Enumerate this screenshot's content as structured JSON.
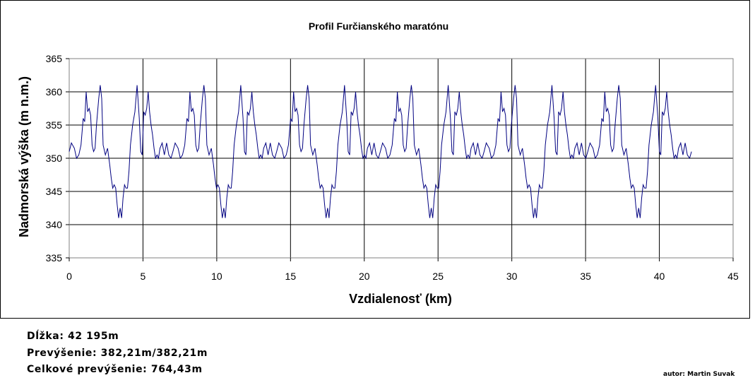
{
  "chart_data": {
    "type": "line",
    "title": "Profil Furčianského maratónu",
    "xlabel": "Vzdialenosť (km)",
    "ylabel": "Nadmorská výška (m n.m.)",
    "xlim": [
      0,
      45
    ],
    "ylim": [
      335,
      365
    ],
    "xticks": [
      0,
      5,
      10,
      15,
      20,
      25,
      30,
      35,
      40,
      45
    ],
    "yticks": [
      335,
      340,
      345,
      350,
      355,
      360,
      365
    ],
    "grid": true,
    "legend": "none",
    "line_color": "#000080",
    "lap_length_km": 7.03,
    "laps": 6,
    "lap_profile": {
      "x": [
        0,
        0.15,
        0.35,
        0.5,
        0.65,
        0.8,
        0.95,
        1.05,
        1.15,
        1.25,
        1.35,
        1.45,
        1.55,
        1.65,
        1.75,
        1.85,
        2.0,
        2.1,
        2.2,
        2.3,
        2.45,
        2.6,
        2.75,
        2.85,
        2.95,
        3.05,
        3.15,
        3.25,
        3.35,
        3.45,
        3.55,
        3.65,
        3.75,
        3.85,
        3.95,
        4.05,
        4.15,
        4.3,
        4.45,
        4.6,
        4.75,
        4.85,
        4.95,
        5.05,
        5.15,
        5.25,
        5.35,
        5.45,
        5.55,
        5.65,
        5.75,
        5.85,
        5.95,
        6.05,
        6.15,
        6.3,
        6.45,
        6.6,
        6.75,
        6.9,
        7.03
      ],
      "y": [
        351,
        352.3,
        351.5,
        350,
        350.5,
        352,
        356,
        355.5,
        360,
        357,
        357.5,
        356.5,
        352,
        351,
        351.5,
        355,
        359,
        361,
        359,
        352,
        350.5,
        351.5,
        349,
        347,
        345.5,
        346,
        345.5,
        343,
        341,
        342.5,
        341,
        344,
        346,
        345.5,
        345.5,
        348,
        352,
        355,
        357,
        361,
        356,
        351,
        350.5,
        357,
        356.5,
        357.5,
        360,
        357,
        355,
        353.5,
        351.5,
        350,
        350.5,
        350,
        351.5,
        352.3,
        350.5,
        352.3,
        350.5,
        350,
        351
      ]
    }
  },
  "stats": {
    "length": "Dĺžka: 42 195m",
    "elevation": "Prevýšenie: 382,21m/382,21m",
    "total_elevation": "Celkové prevýšenie: 764,43m"
  },
  "author": "autor: Martin Suvak"
}
